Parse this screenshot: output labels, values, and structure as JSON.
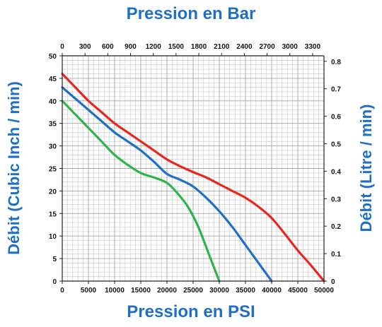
{
  "chart_data": {
    "type": "line",
    "title_top": "Pression en Bar",
    "xlabel": "Pression en PSI",
    "ylabel": "Débit (Cubic Inch / min)",
    "ylabel_right": "Débit (Litre / min)",
    "x_psi": {
      "min": 0,
      "max": 50000,
      "ticks": [
        "0",
        "5000",
        "10000",
        "15000",
        "20000",
        "25000",
        "30000",
        "35000",
        "40000",
        "45000",
        "50000"
      ]
    },
    "x_bar": {
      "min": 0,
      "max": 3450,
      "ticks": [
        "0",
        "300",
        "600",
        "900",
        "1200",
        "1500",
        "1800",
        "2100",
        "2400",
        "2700",
        "3000",
        "3300"
      ]
    },
    "y_left": {
      "min": 0,
      "max": 50,
      "ticks": [
        "0",
        "5",
        "10",
        "15",
        "20",
        "25",
        "30",
        "35",
        "40",
        "45",
        "50"
      ]
    },
    "y_right": {
      "min": 0,
      "max": 0.82,
      "ticks": [
        "0",
        "0.1",
        "0.2",
        "0.3",
        "0.4",
        "0.5",
        "0.6",
        "0.7",
        "0.8"
      ]
    },
    "grid": true,
    "series": [
      {
        "color": "#e8261e",
        "x": [
          0,
          2500,
          5000,
          7500,
          10000,
          12500,
          15000,
          17500,
          20000,
          22500,
          25000,
          27500,
          30000,
          32500,
          35000,
          37500,
          40000,
          42500,
          45000,
          47500,
          50000
        ],
        "y": [
          46,
          43,
          40,
          37.5,
          35,
          33,
          31,
          29,
          27,
          25.5,
          24.2,
          23,
          21.5,
          20,
          18.5,
          16.5,
          14,
          10.5,
          6.8,
          3.5,
          0
        ]
      },
      {
        "color": "#1f6fc2",
        "x": [
          0,
          2500,
          5000,
          7500,
          10000,
          12500,
          15000,
          17500,
          20000,
          22500,
          25000,
          27500,
          30000,
          32500,
          35000,
          37500,
          40000
        ],
        "y": [
          43,
          40.5,
          38,
          35.5,
          33,
          31,
          29,
          26.5,
          23.8,
          22.5,
          21,
          18.5,
          15.5,
          12,
          8,
          4,
          0
        ]
      },
      {
        "color": "#2fb34a",
        "x": [
          0,
          2500,
          5000,
          7500,
          10000,
          12500,
          15000,
          17500,
          20000,
          22000,
          24000,
          26000,
          28000,
          30000
        ],
        "y": [
          40,
          37,
          34,
          31,
          28,
          25.8,
          24,
          23,
          21.8,
          19.5,
          16.5,
          12,
          6,
          0
        ]
      }
    ]
  }
}
